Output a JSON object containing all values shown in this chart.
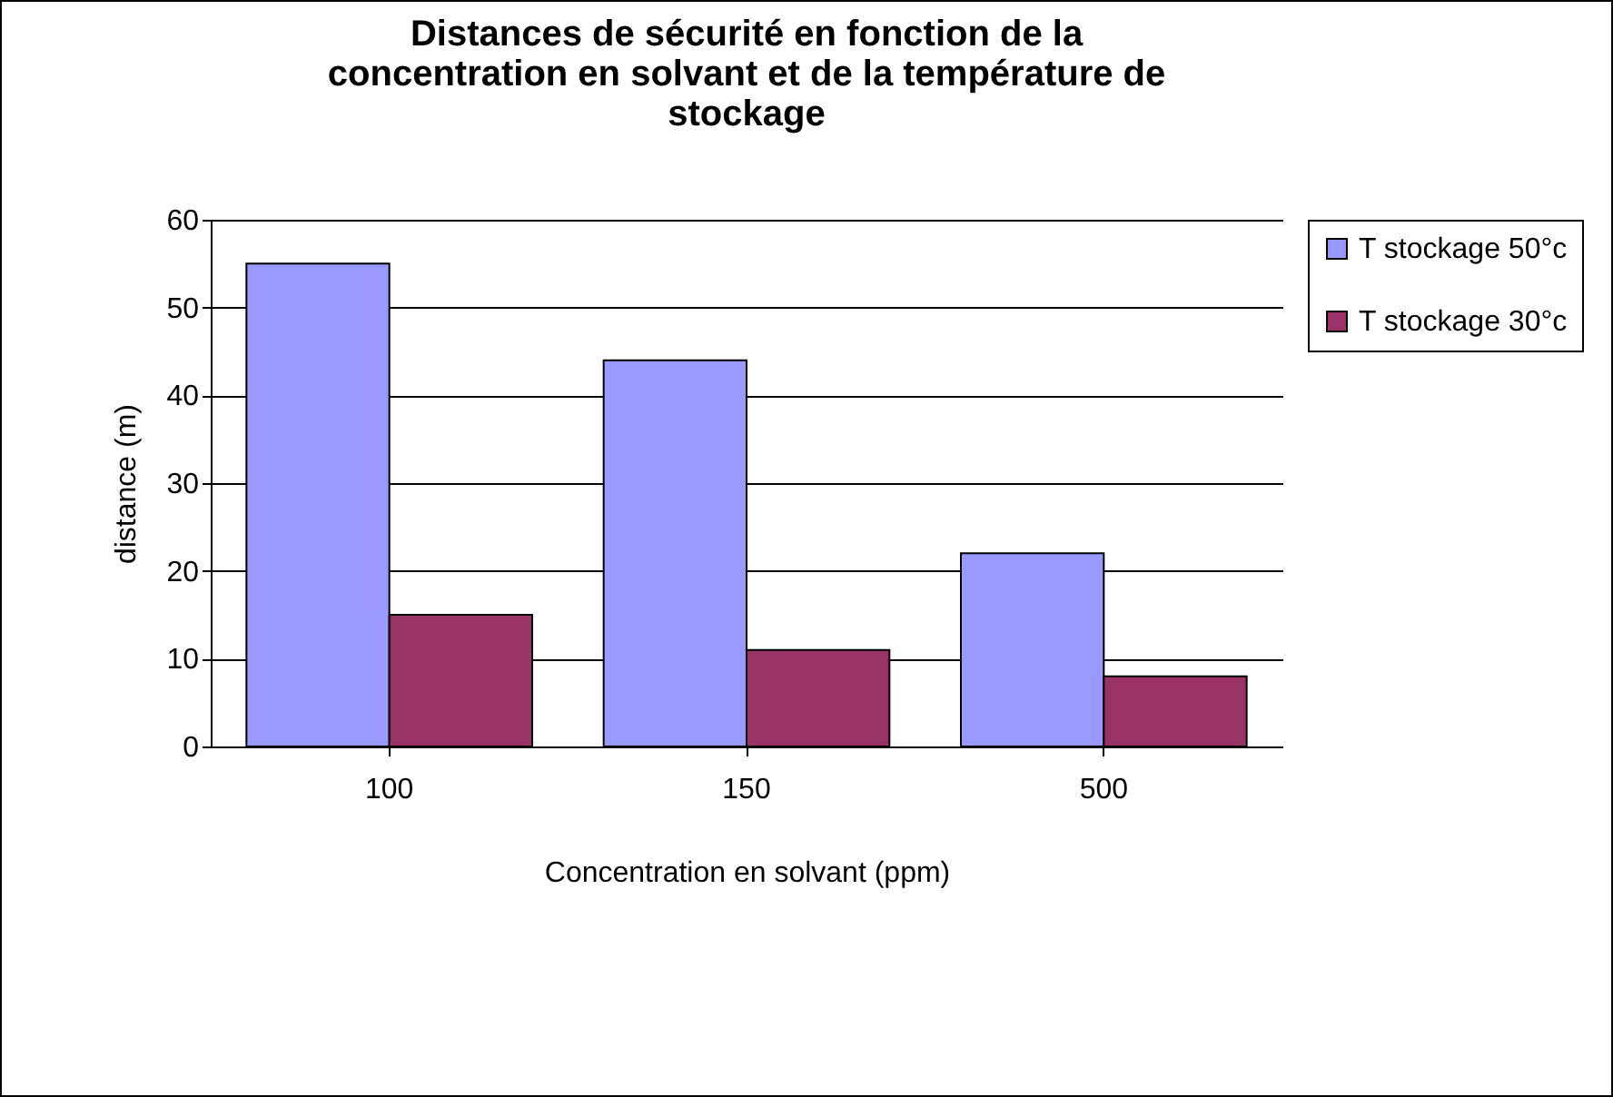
{
  "chart_data": {
    "type": "bar",
    "title": "Distances de sécurité en fonction de la concentration en solvant et de la température de stockage",
    "xlabel": "Concentration en solvant (ppm)",
    "ylabel": "distance (m)",
    "categories": [
      "100",
      "150",
      "500"
    ],
    "series": [
      {
        "name": "T stockage 50°c",
        "color": "#9999ff",
        "values": [
          55,
          44,
          22
        ]
      },
      {
        "name": "T stockage 30°c",
        "color": "#993366",
        "values": [
          15,
          11,
          8
        ]
      }
    ],
    "ylim": [
      0,
      60
    ],
    "yticks": [
      0,
      10,
      20,
      30,
      40,
      50,
      60
    ],
    "grid": "y",
    "legend": "right"
  }
}
